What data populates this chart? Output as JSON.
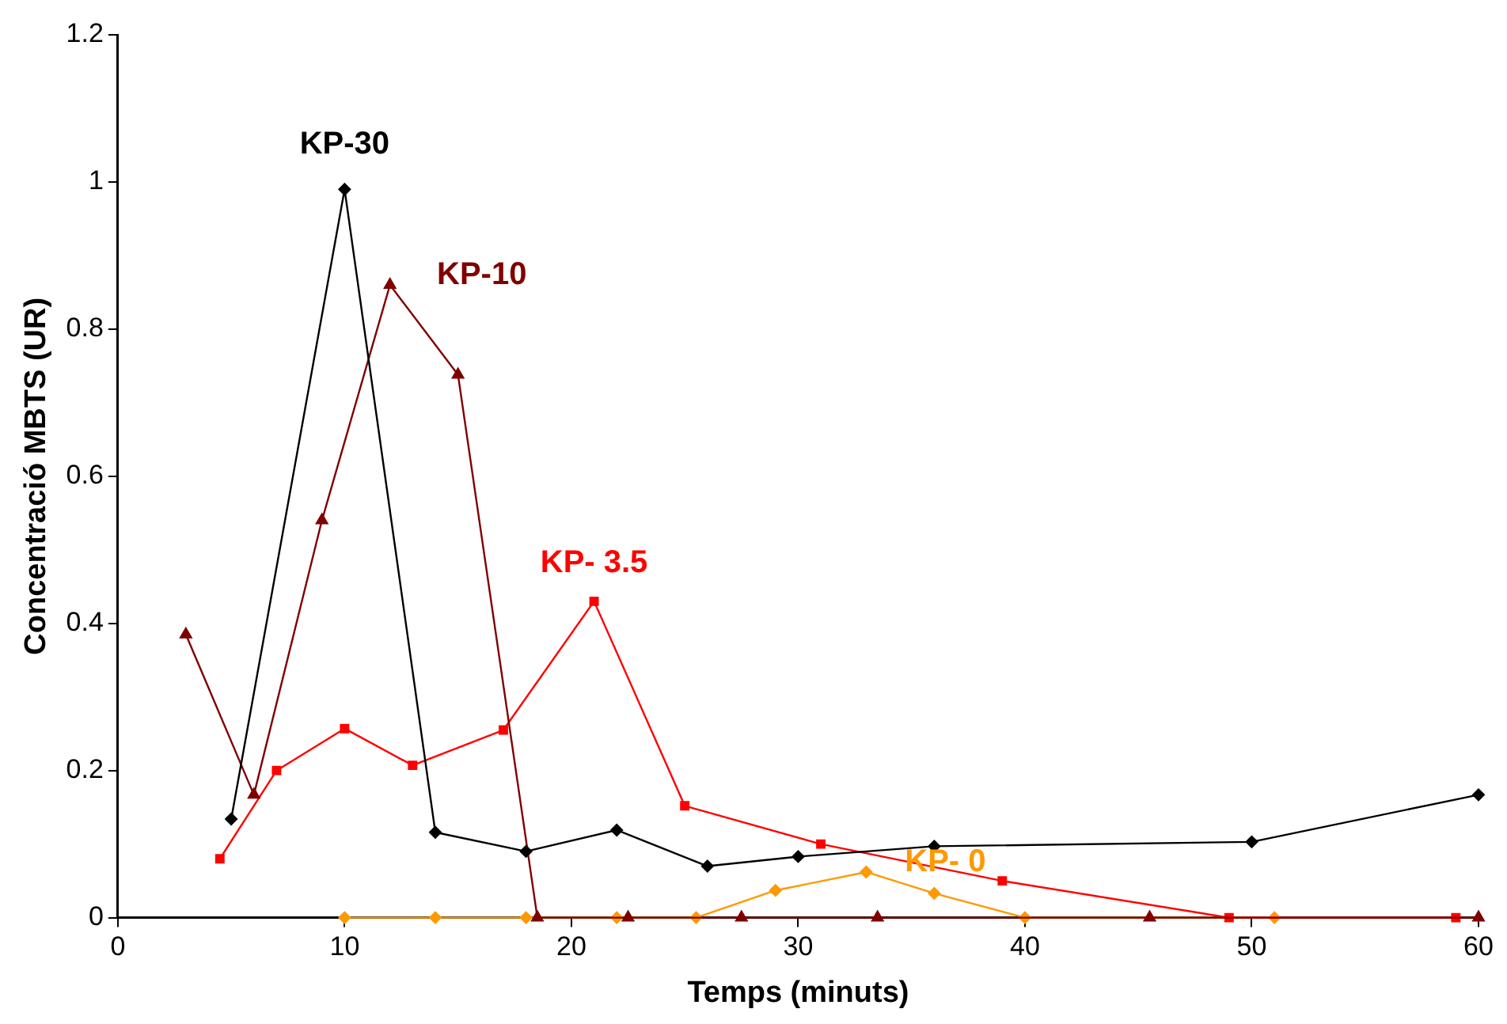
{
  "chart_data": {
    "type": "line",
    "xlabel": "Temps (minuts)",
    "ylabel": "Concentració MBTS (UR)",
    "xlim": [
      0,
      60
    ],
    "xticks": [
      0,
      10,
      20,
      30,
      40,
      50,
      60
    ],
    "ylim": [
      0,
      1.2
    ],
    "yticks": [
      0,
      0.2,
      0.4,
      0.6,
      0.8,
      1,
      1.2
    ],
    "grid": false,
    "legend": false,
    "line_style": "solid",
    "series": [
      {
        "name": "KP-30",
        "color": "#000000",
        "marker": "diamond",
        "x": [
          5,
          10,
          14,
          18,
          22,
          26,
          30,
          36,
          50,
          60
        ],
        "values": [
          0.134,
          0.99,
          0.116,
          0.09,
          0.119,
          0.07,
          0.083,
          0.097,
          0.103,
          0.167
        ]
      },
      {
        "name": "KP-10",
        "color": "#800000",
        "marker": "triangle",
        "x": [
          3,
          6,
          9,
          12,
          15,
          18.5,
          22.5,
          27.5,
          33.5,
          45.5,
          60
        ],
        "values": [
          0.385,
          0.167,
          0.54,
          0.86,
          0.738,
          0,
          0,
          0,
          0,
          0,
          0
        ]
      },
      {
        "name": "KP- 3.5",
        "color": "#ff0000",
        "marker": "square",
        "x": [
          4.5,
          7,
          10,
          13,
          17,
          21,
          25,
          31,
          39,
          49,
          59
        ],
        "values": [
          0.08,
          0.2,
          0.257,
          0.207,
          0.255,
          0.43,
          0.152,
          0.1,
          0.05,
          0,
          0
        ]
      },
      {
        "name": "KP- 0",
        "color": "#ff9900",
        "marker": "diamond",
        "x": [
          10,
          14,
          18,
          22,
          25.5,
          29,
          33,
          36,
          40,
          51
        ],
        "values": [
          0,
          0,
          0,
          0,
          0,
          0.037,
          0.062,
          0.033,
          0,
          0
        ]
      }
    ]
  }
}
